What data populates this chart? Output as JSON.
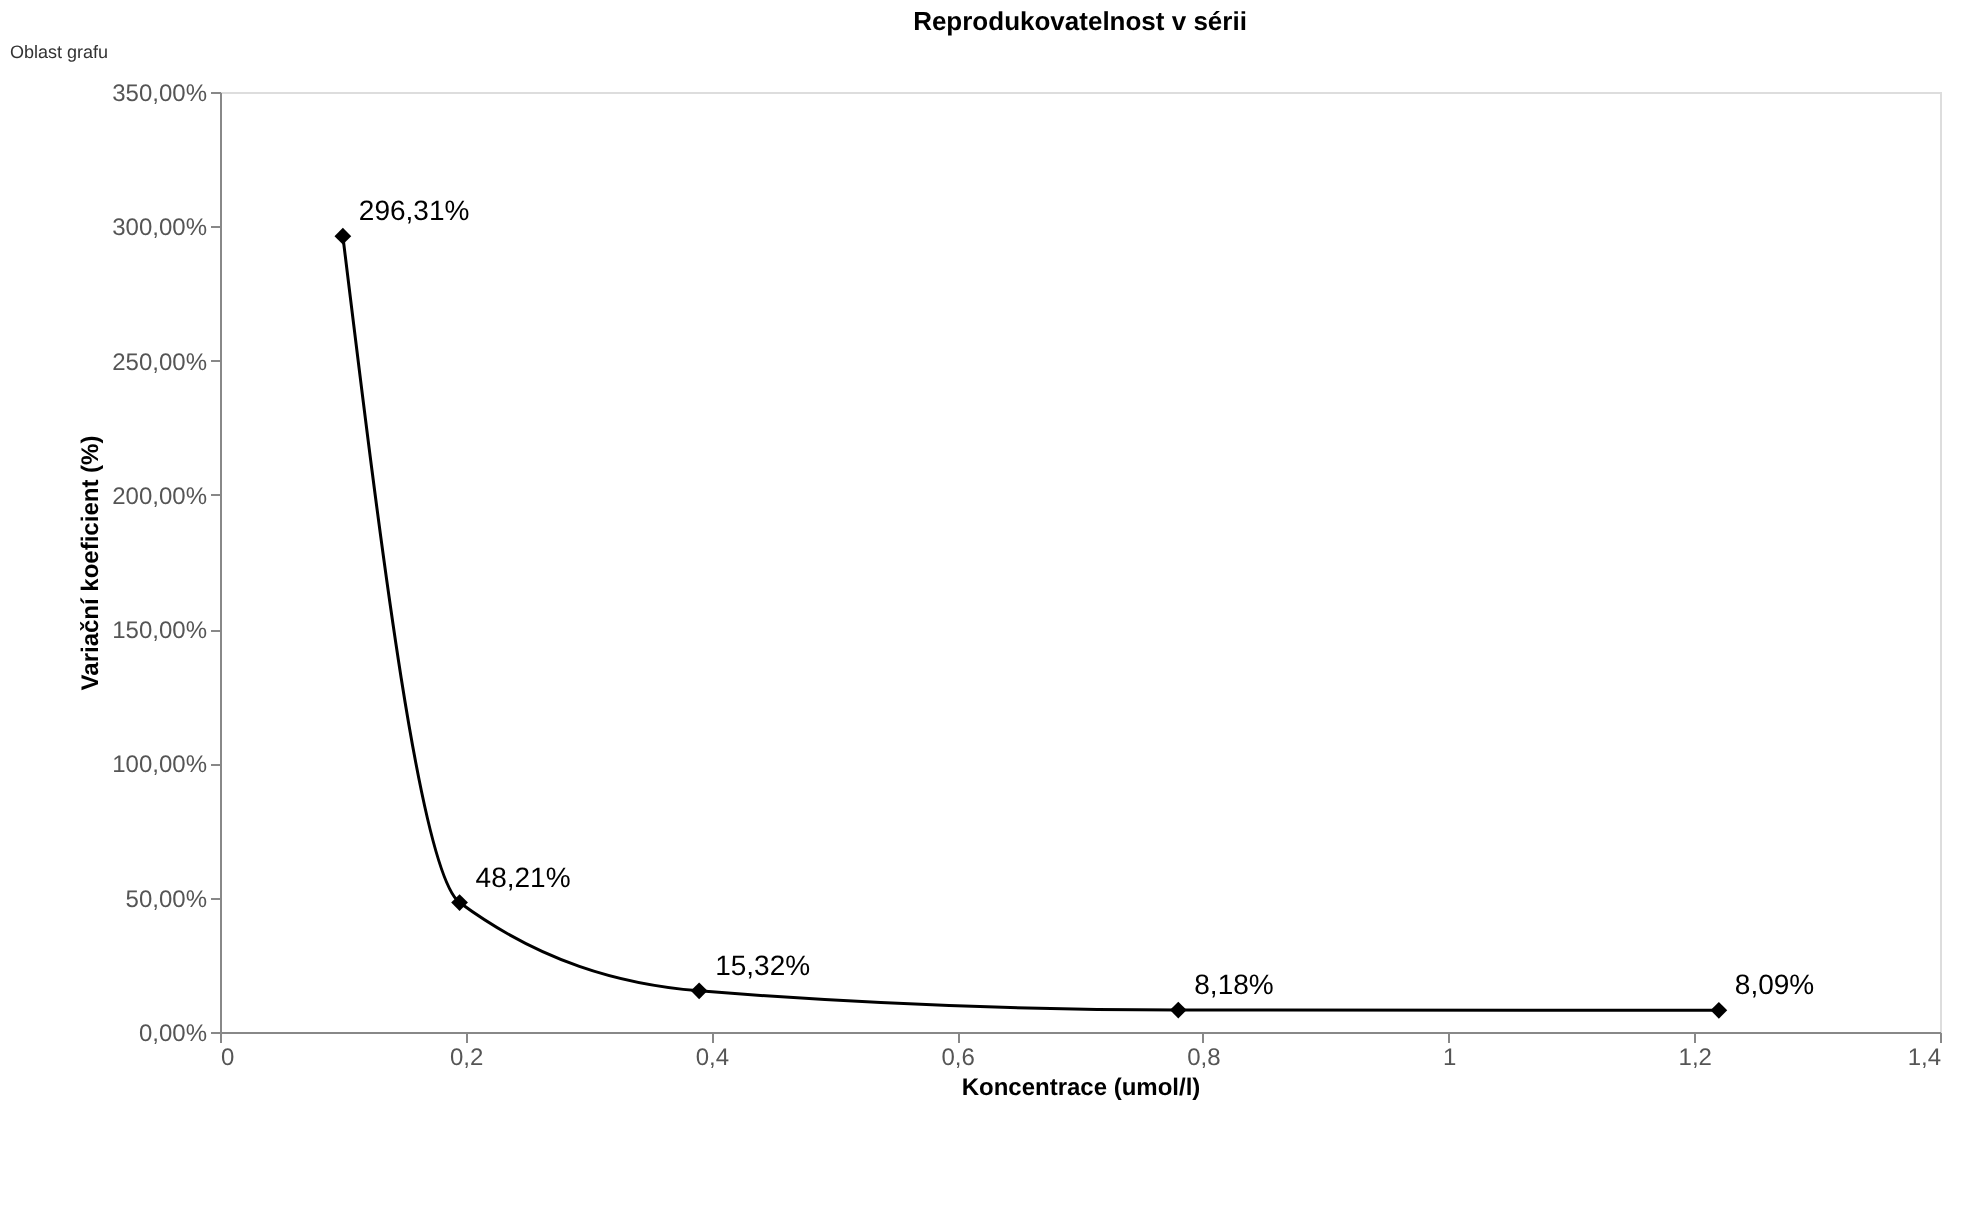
{
  "chart_data": {
    "type": "line",
    "title": "Reprodukovatelnost v sérii",
    "xlabel": "Koncentrace (umol/l)",
    "ylabel": "Variační koeficient (%)",
    "x": [
      0.1,
      0.195,
      0.39,
      0.78,
      1.22
    ],
    "series": [
      {
        "color": "#000000",
        "values": [
          296.31,
          48.21,
          15.32,
          8.18,
          8.09
        ],
        "value_labels": [
          "296,31%",
          "48,21%",
          "15,32%",
          "8,18%",
          "8,09%"
        ]
      }
    ],
    "xlim": [
      0,
      1.4
    ],
    "xticks": [
      0,
      {
        "value": 0.2,
        "label": "0,2"
      },
      {
        "value": 0.4,
        "label": "0,4"
      },
      {
        "value": 0.6,
        "label": "0,6"
      },
      {
        "value": 0.8,
        "label": "0,8"
      },
      1,
      {
        "value": 1.2,
        "label": "1,2"
      },
      {
        "value": 1.4,
        "label": "1,4"
      }
    ],
    "ylim": [
      0,
      350
    ],
    "yticks": [
      {
        "value": 0,
        "label": "0,00%"
      },
      {
        "value": 50,
        "label": "50,00%"
      },
      {
        "value": 100,
        "label": "100,00%"
      },
      {
        "value": 150,
        "label": "150,00%"
      },
      {
        "value": 200,
        "label": "200,00%"
      },
      {
        "value": 250,
        "label": "250,00%"
      },
      {
        "value": 300,
        "label": "300,00%"
      },
      {
        "value": 350,
        "label": "350,00%"
      }
    ],
    "annotations": [
      "Oblast grafu"
    ],
    "grid": false,
    "marker": "diamond",
    "line_style": "solid"
  }
}
